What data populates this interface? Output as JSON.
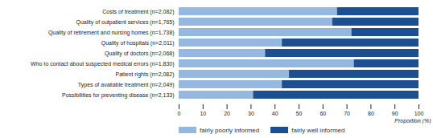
{
  "chart_data": {
    "type": "bar",
    "orientation": "horizontal",
    "stacked": true,
    "categories": [
      "Costs of treatment (n=2,082)",
      "Quality of outpatient services (n=1,765)",
      "Quality of retirement and nursing homes (n=1,738)",
      "Quality of hospitals (n=2,011)",
      "Quality of doctors (n=2,068)",
      "Who to contact about suspected medical errors (n=1,830)",
      "Patient rights (n=2,082)",
      "Types of available treatment (n=2,049)",
      "Possibilities for preventing disease (n=2,133)"
    ],
    "series": [
      {
        "name": "fairly poorly informed",
        "color": "#94b8e0",
        "values": [
          66,
          64,
          72,
          43,
          36,
          73,
          46,
          43,
          31
        ]
      },
      {
        "name": "fairly well informed",
        "color": "#1b4f91",
        "values": [
          34,
          36,
          28,
          57,
          64,
          27,
          54,
          57,
          69
        ]
      }
    ],
    "xlabel": "Proportion (%)",
    "xlim": [
      0,
      100
    ],
    "xticks": [
      0,
      10,
      20,
      30,
      40,
      50,
      60,
      70,
      80,
      90,
      100
    ],
    "grid": false,
    "legend": "bottom"
  }
}
